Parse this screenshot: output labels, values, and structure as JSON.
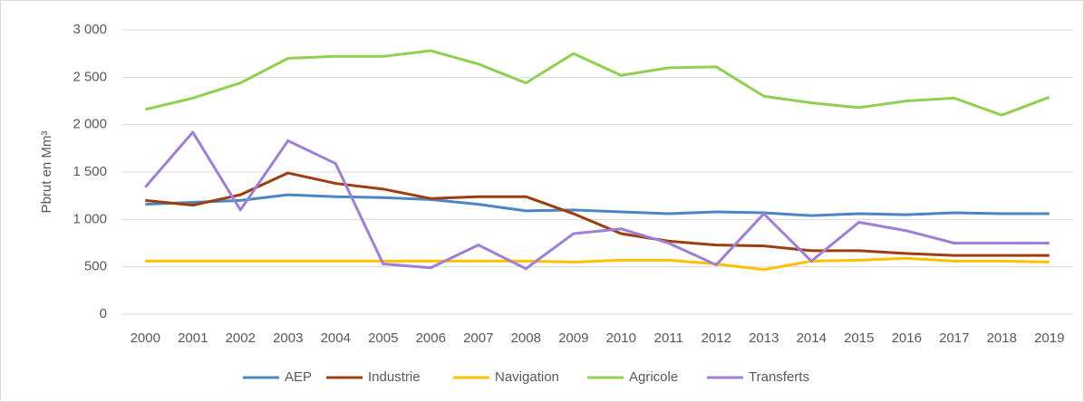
{
  "chart_data": {
    "type": "line",
    "y_label": "Pbrut en Mm³",
    "categories": [
      "2000",
      "2001",
      "2002",
      "2003",
      "2004",
      "2005",
      "2006",
      "2007",
      "2008",
      "2009",
      "2010",
      "2011",
      "2012",
      "2013",
      "2014",
      "2015",
      "2016",
      "2017",
      "2018",
      "2019"
    ],
    "series": [
      {
        "name": "AEP",
        "color": "#4a86c5",
        "values": [
          1160,
          1180,
          1200,
          1260,
          1240,
          1230,
          1210,
          1160,
          1090,
          1100,
          1080,
          1060,
          1080,
          1070,
          1040,
          1060,
          1050,
          1070,
          1060,
          1060
        ]
      },
      {
        "name": "Industrie",
        "color": "#9e3d0e",
        "values": [
          1200,
          1150,
          1260,
          1490,
          1380,
          1320,
          1220,
          1240,
          1240,
          1060,
          850,
          770,
          730,
          720,
          670,
          670,
          640,
          620,
          620,
          620
        ]
      },
      {
        "name": "Navigation",
        "color": "#ffc000",
        "values": [
          560,
          560,
          560,
          560,
          560,
          560,
          560,
          560,
          560,
          550,
          570,
          570,
          530,
          470,
          560,
          570,
          590,
          560,
          560,
          550
        ]
      },
      {
        "name": "Agricole",
        "color": "#8fd14f",
        "values": [
          2160,
          2280,
          2440,
          2700,
          2720,
          2720,
          2780,
          2640,
          2440,
          2750,
          2520,
          2600,
          2610,
          2300,
          2230,
          2180,
          2250,
          2280,
          2100,
          2290
        ]
      },
      {
        "name": "Transferts",
        "color": "#9e7fd8",
        "values": [
          1340,
          1920,
          1100,
          1830,
          1590,
          530,
          490,
          730,
          480,
          850,
          900,
          750,
          520,
          1060,
          560,
          970,
          880,
          750,
          750,
          750
        ]
      }
    ],
    "ylim": [
      0,
      3000
    ],
    "yticks": [
      0,
      500,
      {
        "value": 1000,
        "label": "1 000"
      },
      {
        "value": 1500,
        "label": "1 500"
      },
      {
        "value": 2000,
        "label": "2 000"
      },
      {
        "value": 2500,
        "label": "2 500"
      },
      {
        "value": 3000,
        "label": "3 000"
      }
    ],
    "grid": true,
    "legend": "bottom"
  }
}
